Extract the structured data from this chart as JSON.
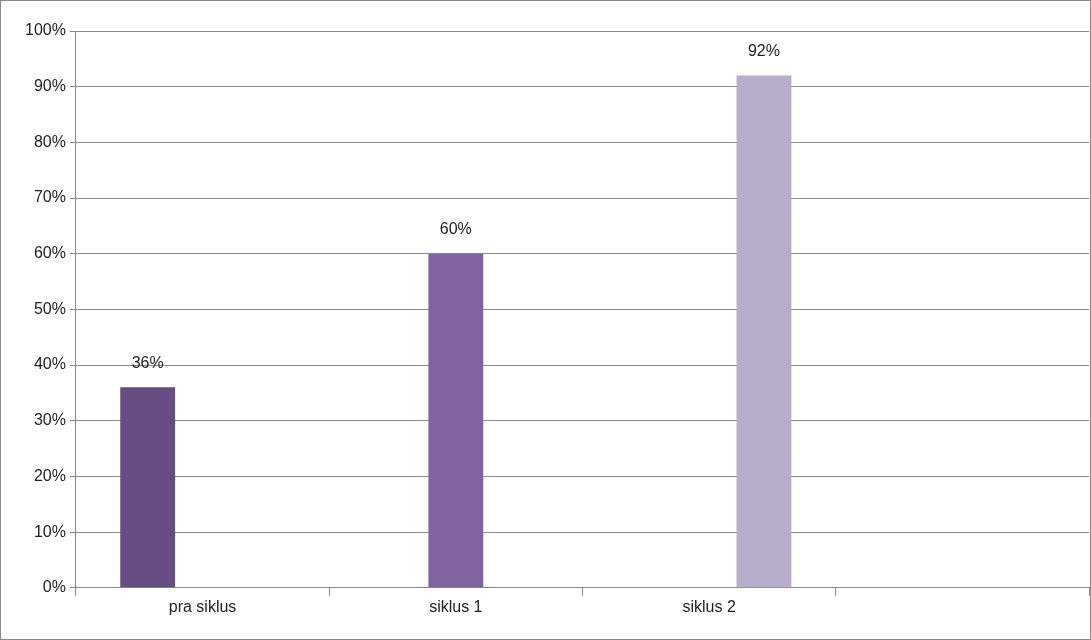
{
  "chart_data": {
    "type": "bar",
    "categories": [
      "pra siklus",
      "siklus 1",
      "siklus 2",
      null
    ],
    "series": [
      {
        "color": "#664d84",
        "values": [
          36,
          null,
          null,
          null
        ],
        "value_labels": [
          "36%",
          null,
          null,
          null
        ]
      },
      {
        "color": "#8064a2",
        "values": [
          null,
          60,
          null,
          null
        ],
        "value_labels": [
          null,
          "60%",
          null,
          null
        ]
      },
      {
        "color": "#b8accb",
        "values": [
          null,
          null,
          92,
          null
        ],
        "value_labels": [
          null,
          null,
          "92%",
          null
        ]
      }
    ],
    "ylim": [
      0,
      100
    ],
    "yticks": [
      {
        "value": 0,
        "label": "0%"
      },
      {
        "value": 10,
        "label": "10%"
      },
      {
        "value": 20,
        "label": "20%"
      },
      {
        "value": 30,
        "label": "30%"
      },
      {
        "value": 40,
        "label": "40%"
      },
      {
        "value": 50,
        "label": "50%"
      },
      {
        "value": 60,
        "label": "60%"
      },
      {
        "value": 70,
        "label": "70%"
      },
      {
        "value": 80,
        "label": "80%"
      },
      {
        "value": 90,
        "label": "90%"
      },
      {
        "value": 100,
        "label": "100%"
      }
    ],
    "grid": "y",
    "legend": false
  }
}
